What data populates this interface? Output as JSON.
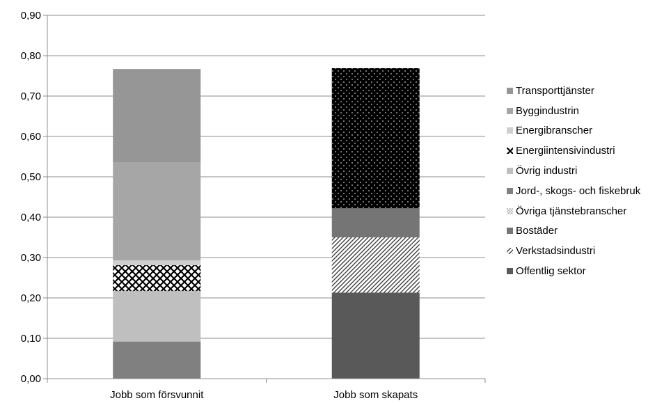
{
  "chart_data": {
    "type": "bar",
    "stacked": true,
    "title": "",
    "xlabel": "",
    "ylabel": "",
    "ylim": [
      0,
      0.9
    ],
    "yticks": [
      "0,00",
      "0,10",
      "0,20",
      "0,30",
      "0,40",
      "0,50",
      "0,60",
      "0,70",
      "0,80",
      "0,90"
    ],
    "grid": true,
    "legend_position": "right",
    "categories": [
      "Jobb som försvunnit",
      "Jobb som skapats"
    ],
    "series": [
      {
        "name": "Offentlig sektor",
        "values": [
          0,
          0.213
        ],
        "color": "#595959",
        "pattern": "solid"
      },
      {
        "name": "Verkstadsindustri",
        "values": [
          0,
          0.137
        ],
        "color": "#ffffff",
        "pattern": "diagonal-stripes"
      },
      {
        "name": "Bostäder",
        "values": [
          0,
          0.072
        ],
        "color": "#757575",
        "pattern": "solid"
      },
      {
        "name": "Övriga tjänstebranscher",
        "values": [
          0,
          0.347
        ],
        "color": "#000000",
        "pattern": "dots"
      },
      {
        "name": "Jord-, skogs- och fiskebruk",
        "values": [
          0.092,
          0
        ],
        "color": "#808080",
        "pattern": "solid"
      },
      {
        "name": "Övrig industri",
        "values": [
          0.125,
          0
        ],
        "color": "#bfbfbf",
        "pattern": "solid"
      },
      {
        "name": "Energiintensivindustri",
        "values": [
          0.064,
          0
        ],
        "color": "#ffffff",
        "pattern": "crosshatch"
      },
      {
        "name": "Energibranscher",
        "values": [
          0.012,
          0
        ],
        "color": "#cfcfcf",
        "pattern": "solid"
      },
      {
        "name": "Byggindustrin",
        "values": [
          0.242,
          0
        ],
        "color": "#a6a6a6",
        "pattern": "solid"
      },
      {
        "name": "Transporttjänster",
        "values": [
          0.232,
          0
        ],
        "color": "#969696",
        "pattern": "solid"
      }
    ],
    "legend_order": [
      "Transporttjänster",
      "Byggindustrin",
      "Energibranscher",
      "Energiintensivindustri",
      "Övrig industri",
      "Jord-, skogs- och fiskebruk",
      "Övriga tjänstebranscher",
      "Bostäder",
      "Verkstadsindustri",
      "Offentlig sektor"
    ]
  }
}
